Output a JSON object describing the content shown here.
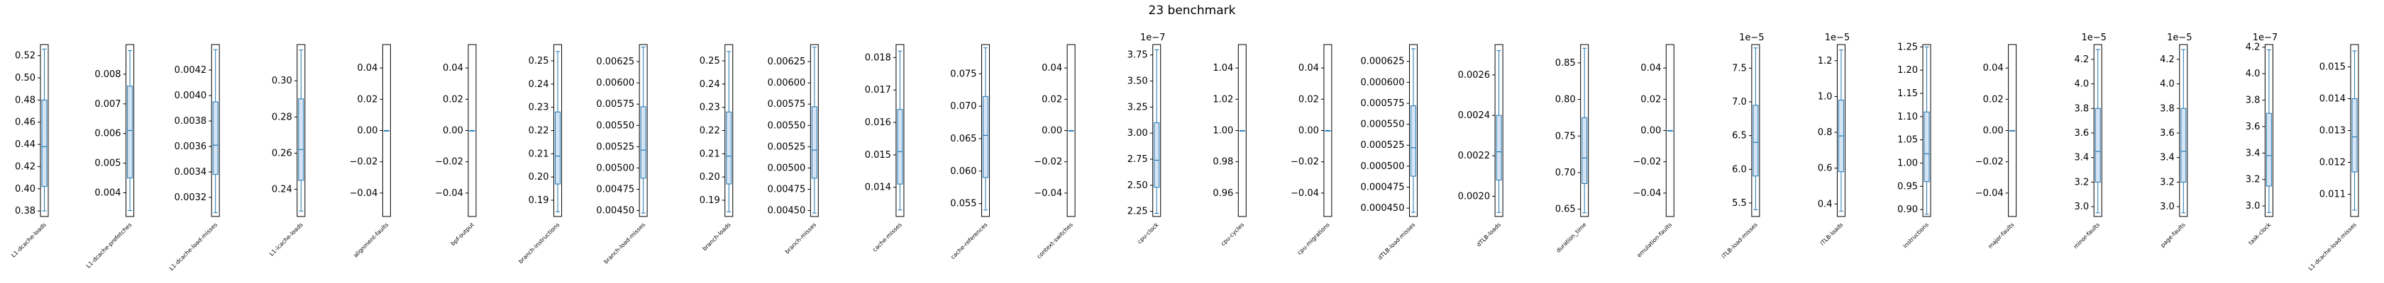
{
  "chart_data": {
    "type": "box",
    "title": "23 benchmark",
    "panels": [
      {
        "label": "L1-dcache-loads",
        "yticks": [
          "0.38",
          "0.40",
          "0.42",
          "0.44",
          "0.46",
          "0.48",
          "0.50",
          "0.52"
        ],
        "ymin": 0.375,
        "ymax": 0.53,
        "box": {
          "whislo": 0.38,
          "q1": 0.402,
          "med": 0.438,
          "q3": 0.48,
          "whishi": 0.526
        }
      },
      {
        "label": "L1-dcache-prefetches",
        "yticks": [
          "0.004",
          "0.005",
          "0.006",
          "0.007",
          "0.008"
        ],
        "ymin": 0.0032,
        "ymax": 0.009,
        "box": {
          "whislo": 0.0034,
          "q1": 0.0045,
          "med": 0.0061,
          "q3": 0.0076,
          "whishi": 0.0088
        }
      },
      {
        "label": "L1-dcache-load-misses",
        "yticks": [
          "0.0032",
          "0.0034",
          "0.0036",
          "0.0038",
          "0.0040",
          "0.0042"
        ],
        "ymin": 0.00305,
        "ymax": 0.0044,
        "box": {
          "whislo": 0.00308,
          "q1": 0.00338,
          "med": 0.00361,
          "q3": 0.00395,
          "whishi": 0.00436
        }
      },
      {
        "label": "L1-icache-loads",
        "yticks": [
          "0.24",
          "0.26",
          "0.28",
          "0.30"
        ],
        "ymin": 0.225,
        "ymax": 0.32,
        "box": {
          "whislo": 0.228,
          "q1": 0.245,
          "med": 0.262,
          "q3": 0.29,
          "whishi": 0.317
        }
      },
      {
        "label": "alignment-faults",
        "yticks": [
          "−0.04",
          "−0.02",
          "0.00",
          "0.02",
          "0.04"
        ],
        "ymin": -0.055,
        "ymax": 0.055,
        "box": {
          "whislo": 0,
          "q1": 0,
          "med": 0,
          "q3": 0,
          "whishi": 0
        }
      },
      {
        "label": "bpf-output",
        "yticks": [
          "−0.04",
          "−0.02",
          "0.00",
          "0.02",
          "0.04"
        ],
        "ymin": -0.055,
        "ymax": 0.055,
        "box": {
          "whislo": 0,
          "q1": 0,
          "med": 0,
          "q3": 0,
          "whishi": 0
        }
      },
      {
        "label": "branch-instructions",
        "yticks": [
          "0.19",
          "0.20",
          "0.21",
          "0.22",
          "0.23",
          "0.24",
          "0.25"
        ],
        "ymin": 0.183,
        "ymax": 0.257,
        "box": {
          "whislo": 0.185,
          "q1": 0.197,
          "med": 0.209,
          "q3": 0.228,
          "whishi": 0.254
        }
      },
      {
        "label": "branch-load-misses",
        "yticks": [
          "0.00450",
          "0.00475",
          "0.00500",
          "0.00525",
          "0.00550",
          "0.00575",
          "0.00600",
          "0.00625"
        ],
        "ymin": 0.00443,
        "ymax": 0.00645,
        "box": {
          "whislo": 0.00447,
          "q1": 0.00488,
          "med": 0.00521,
          "q3": 0.00572,
          "whishi": 0.00642
        }
      },
      {
        "label": "branch-loads",
        "yticks": [
          "0.19",
          "0.20",
          "0.21",
          "0.22",
          "0.23",
          "0.24",
          "0.25"
        ],
        "ymin": 0.183,
        "ymax": 0.257,
        "box": {
          "whislo": 0.185,
          "q1": 0.197,
          "med": 0.209,
          "q3": 0.228,
          "whishi": 0.254
        }
      },
      {
        "label": "branch-misses",
        "yticks": [
          "0.00450",
          "0.00475",
          "0.00500",
          "0.00525",
          "0.00550",
          "0.00575",
          "0.00600",
          "0.00625"
        ],
        "ymin": 0.00443,
        "ymax": 0.00645,
        "box": {
          "whislo": 0.00447,
          "q1": 0.00488,
          "med": 0.00521,
          "q3": 0.00572,
          "whishi": 0.00642
        }
      },
      {
        "label": "cache-misses",
        "yticks": [
          "0.014",
          "0.015",
          "0.016",
          "0.017",
          "0.018"
        ],
        "ymin": 0.0131,
        "ymax": 0.0184,
        "box": {
          "whislo": 0.0133,
          "q1": 0.0141,
          "med": 0.0151,
          "q3": 0.0164,
          "whishi": 0.0182
        }
      },
      {
        "label": "cache-references",
        "yticks": [
          "0.055",
          "0.060",
          "0.065",
          "0.070",
          "0.075"
        ],
        "ymin": 0.053,
        "ymax": 0.0795,
        "box": {
          "whislo": 0.054,
          "q1": 0.059,
          "med": 0.0655,
          "q3": 0.0715,
          "whishi": 0.079
        }
      },
      {
        "label": "context-switches",
        "yticks": [
          "−0.04",
          "−0.02",
          "0.00",
          "0.02",
          "0.04"
        ],
        "ymin": -0.055,
        "ymax": 0.055,
        "box": {
          "whislo": 0,
          "q1": 0,
          "med": 0,
          "q3": 0,
          "whishi": 0
        }
      },
      {
        "label": "cpu-clock",
        "exponent": "1e−7",
        "yticks": [
          "2.25",
          "2.50",
          "2.75",
          "3.00",
          "3.25",
          "3.50",
          "3.75"
        ],
        "ymin": 2.2,
        "ymax": 3.85,
        "box": {
          "whislo": 2.23,
          "q1": 2.48,
          "med": 2.74,
          "q3": 3.1,
          "whishi": 3.8
        }
      },
      {
        "label": "cpu-cycles",
        "yticks": [
          "0.96",
          "0.98",
          "1.00",
          "1.02",
          "1.04"
        ],
        "ymin": 0.945,
        "ymax": 1.055,
        "box": {
          "whislo": 1.0,
          "q1": 1.0,
          "med": 1.0,
          "q3": 1.0,
          "whishi": 1.0
        }
      },
      {
        "label": "cpu-migrations",
        "yticks": [
          "−0.04",
          "−0.02",
          "0.00",
          "0.02",
          "0.04"
        ],
        "ymin": -0.055,
        "ymax": 0.055,
        "box": {
          "whislo": 0,
          "q1": 0,
          "med": 0,
          "q3": 0,
          "whishi": 0
        }
      },
      {
        "label": "dTLB-load-misses",
        "yticks": [
          "0.000450",
          "0.000475",
          "0.000500",
          "0.000525",
          "0.000550",
          "0.000575",
          "0.000600",
          "0.000625"
        ],
        "ymin": 0.00044,
        "ymax": 0.000645,
        "box": {
          "whislo": 0.000445,
          "q1": 0.000488,
          "med": 0.000522,
          "q3": 0.000572,
          "whishi": 0.00064
        }
      },
      {
        "label": "dTLB-loads",
        "yticks": [
          "0.0020",
          "0.0022",
          "0.0024",
          "0.0026"
        ],
        "ymin": 0.0019,
        "ymax": 0.00275,
        "box": {
          "whislo": 0.00192,
          "q1": 0.00208,
          "med": 0.00222,
          "q3": 0.0024,
          "whishi": 0.00272
        }
      },
      {
        "label": "duration_time",
        "yticks": [
          "0.65",
          "0.70",
          "0.75",
          "0.80",
          "0.85"
        ],
        "ymin": 0.64,
        "ymax": 0.875,
        "box": {
          "whislo": 0.645,
          "q1": 0.685,
          "med": 0.72,
          "q3": 0.775,
          "whishi": 0.87
        }
      },
      {
        "label": "emulation-faults",
        "yticks": [
          "−0.04",
          "−0.02",
          "0.00",
          "0.02",
          "0.04"
        ],
        "ymin": -0.055,
        "ymax": 0.055,
        "box": {
          "whislo": 0,
          "q1": 0,
          "med": 0,
          "q3": 0,
          "whishi": 0
        }
      },
      {
        "label": "iTLB-load-misses",
        "exponent": "1e−5",
        "yticks": [
          "5.5",
          "6.0",
          "6.5",
          "7.0",
          "7.5"
        ],
        "ymin": 5.3,
        "ymax": 7.85,
        "box": {
          "whislo": 5.4,
          "q1": 5.9,
          "med": 6.4,
          "q3": 6.95,
          "whishi": 7.8
        }
      },
      {
        "label": "iTLB-loads",
        "exponent": "1e−5",
        "yticks": [
          "0.4",
          "0.6",
          "0.8",
          "1.0",
          "1.2"
        ],
        "ymin": 0.33,
        "ymax": 1.29,
        "box": {
          "whislo": 0.36,
          "q1": 0.58,
          "med": 0.78,
          "q3": 0.98,
          "whishi": 1.26
        }
      },
      {
        "label": "instructions",
        "yticks": [
          "0.90",
          "0.95",
          "1.00",
          "1.05",
          "1.10",
          "1.15",
          "1.20",
          "1.25"
        ],
        "ymin": 0.885,
        "ymax": 1.255,
        "box": {
          "whislo": 0.89,
          "q1": 0.96,
          "med": 1.02,
          "q3": 1.11,
          "whishi": 1.25
        }
      },
      {
        "label": "major-faults",
        "yticks": [
          "−0.04",
          "−0.02",
          "0.00",
          "0.02",
          "0.04"
        ],
        "ymin": -0.055,
        "ymax": 0.055,
        "box": {
          "whislo": 0,
          "q1": 0,
          "med": 0,
          "q3": 0,
          "whishi": 0
        }
      },
      {
        "label": "minor-faults",
        "exponent": "1e−5",
        "yticks": [
          "3.0",
          "3.2",
          "3.4",
          "3.6",
          "3.8",
          "4.0",
          "4.2"
        ],
        "ymin": 2.92,
        "ymax": 4.32,
        "box": {
          "whislo": 2.95,
          "q1": 3.2,
          "med": 3.45,
          "q3": 3.8,
          "whishi": 4.28
        }
      },
      {
        "label": "page-faults",
        "exponent": "1e−5",
        "yticks": [
          "3.0",
          "3.2",
          "3.4",
          "3.6",
          "3.8",
          "4.0",
          "4.2"
        ],
        "ymin": 2.92,
        "ymax": 4.32,
        "box": {
          "whislo": 2.95,
          "q1": 3.2,
          "med": 3.45,
          "q3": 3.8,
          "whishi": 4.28
        }
      },
      {
        "label": "task-clock",
        "exponent": "1e−7",
        "yticks": [
          "3.0",
          "3.2",
          "3.4",
          "3.6",
          "3.8",
          "4.0",
          "4.2"
        ],
        "ymin": 2.92,
        "ymax": 4.22,
        "box": {
          "whislo": 2.95,
          "q1": 3.15,
          "med": 3.38,
          "q3": 3.7,
          "whishi": 4.18
        }
      },
      {
        "label": "L1-dcache-load-misses",
        "yticks": [
          "0.011",
          "0.012",
          "0.013",
          "0.014",
          "0.015"
        ],
        "ymin": 0.0103,
        "ymax": 0.0157,
        "box": {
          "whislo": 0.0105,
          "q1": 0.0117,
          "med": 0.0128,
          "q3": 0.014,
          "whishi": 0.0155
        }
      }
    ]
  },
  "colors": {
    "box_fill": "#d4e4f4",
    "box_edge": "#1f77b4",
    "axis": "#000000",
    "text": "#000000"
  }
}
